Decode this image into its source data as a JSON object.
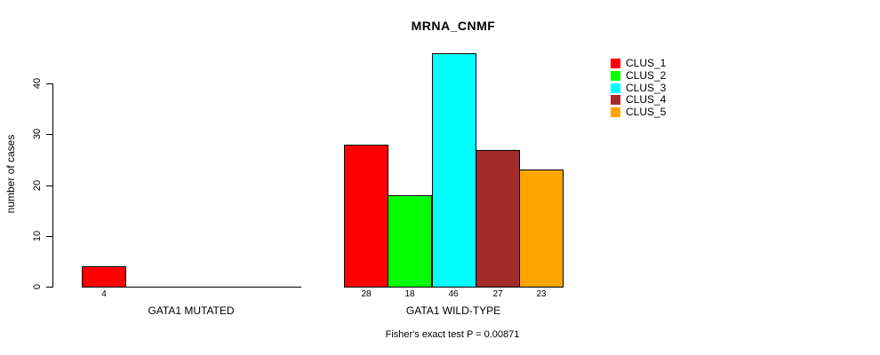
{
  "title": "MRNA_CNMF",
  "subtitle": "Fisher's exact test P = 0.00871",
  "y_axis": {
    "label": "number of cases",
    "ticks": [
      "0",
      "10",
      "20",
      "30",
      "40"
    ]
  },
  "legend": {
    "entries": [
      {
        "label": "CLUS_1",
        "color": "#FF0000"
      },
      {
        "label": "CLUS_2",
        "color": "#00FF00"
      },
      {
        "label": "CLUS_3",
        "color": "#00FFFF"
      },
      {
        "label": "CLUS_4",
        "color": "#A52A2A"
      },
      {
        "label": "CLUS_5",
        "color": "#FFA500"
      }
    ]
  },
  "chart_data": {
    "type": "bar",
    "title": "MRNA_CNMF",
    "xlabel": "",
    "ylabel": "number of cases",
    "ylim": [
      0,
      46
    ],
    "yticks": [
      0,
      10,
      20,
      30,
      40
    ],
    "grid": false,
    "legend_position": "right",
    "series": [
      "CLUS_1",
      "CLUS_2",
      "CLUS_3",
      "CLUS_4",
      "CLUS_5"
    ],
    "series_colors": [
      "#FF0000",
      "#00FF00",
      "#00FFFF",
      "#A52A2A",
      "#FFA500"
    ],
    "groups": [
      {
        "label": "GATA1 MUTATED",
        "values": [
          4,
          0,
          0,
          0,
          0
        ]
      },
      {
        "label": "GATA1 WILD-TYPE",
        "values": [
          28,
          18,
          46,
          27,
          23
        ]
      }
    ],
    "value_labels_shown_for_nonzero_only": true,
    "annotation": "Fisher's exact test P = 0.00871"
  }
}
